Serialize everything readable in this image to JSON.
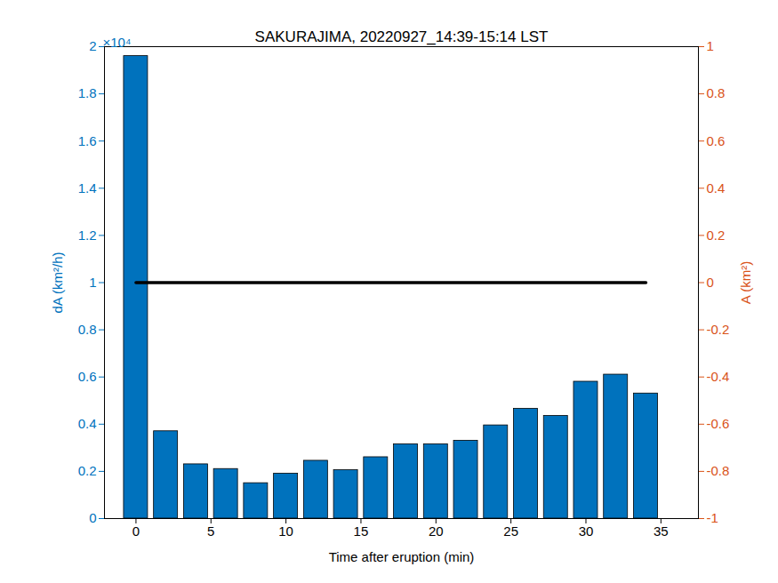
{
  "chart_data": {
    "type": "bar",
    "title": "SAKURAJIMA, 20220927_14:39-15:14 LST",
    "xlabel": "Time after eruption (min)",
    "ylabel": "dA (km²/h)",
    "y2label": "A (km²)",
    "annotation": "×10⁴",
    "x": [
      0,
      2,
      4,
      6,
      8,
      10,
      12,
      14,
      16,
      18,
      20,
      22,
      24,
      26,
      28,
      30,
      32,
      34
    ],
    "series": [
      {
        "type": "bar",
        "color": "#0072BD",
        "values": [
          1.96,
          0.37,
          0.23,
          0.21,
          0.15,
          0.19,
          0.245,
          0.205,
          0.26,
          0.315,
          0.315,
          0.33,
          0.395,
          0.465,
          0.435,
          0.58,
          0.61,
          0.53
        ]
      },
      {
        "type": "line",
        "color": "#000000",
        "axis": "y2",
        "x": [
          0,
          34
        ],
        "values": [
          0,
          0
        ]
      }
    ],
    "xlim": [
      -2.1,
      37.5
    ],
    "xticks": [
      0,
      5,
      10,
      15,
      20,
      25,
      30,
      35
    ],
    "ylim": [
      0,
      2
    ],
    "yticks": [
      0,
      0.2,
      0.4,
      0.6,
      0.8,
      1,
      1.2,
      1.4,
      1.6,
      1.8,
      2
    ],
    "y2lim": [
      -1,
      1
    ],
    "y2ticks": [
      -1,
      -0.8,
      -0.6,
      -0.4,
      -0.2,
      0,
      0.2,
      0.4,
      0.6,
      0.8,
      1
    ],
    "grid": false
  }
}
